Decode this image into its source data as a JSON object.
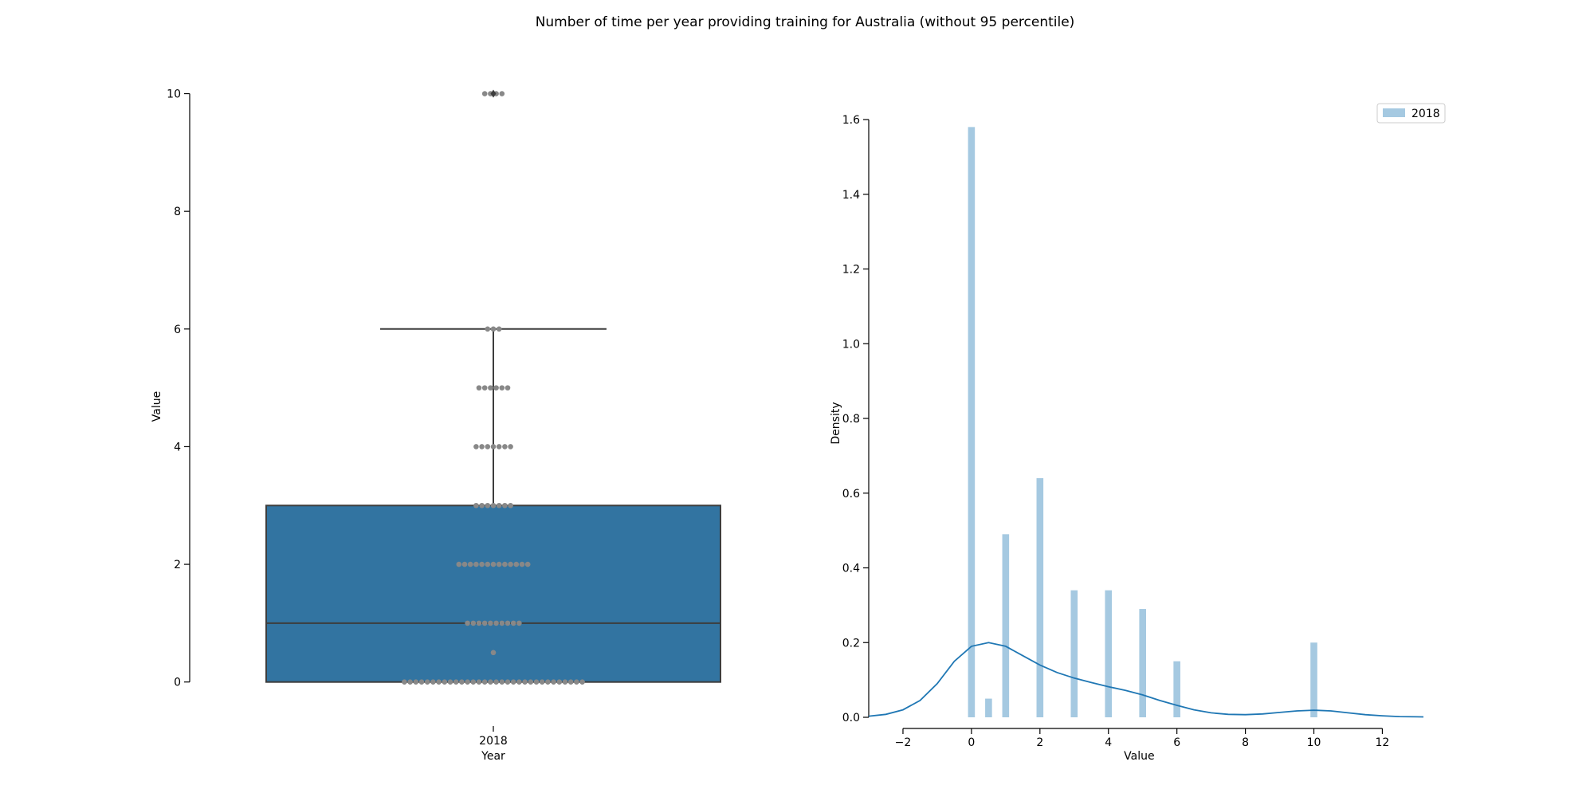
{
  "title": "Number of time per year providing training for Australia (without 95 percentile)",
  "colors": {
    "box_fill": "#3274a1",
    "box_edge": "#3d3d3d",
    "swarm": "#888888",
    "hist_bar": "#1f77b4",
    "kde": "#1f77b4"
  },
  "chart_data": [
    {
      "type": "box",
      "title": "",
      "xlabel": "Year",
      "ylabel": "Value",
      "categories": [
        "2018"
      ],
      "ylim": [
        -0.6,
        10.4
      ],
      "yticks": [
        0,
        2,
        4,
        6,
        8,
        10
      ],
      "box": {
        "category": "2018",
        "q1": 0,
        "median": 1,
        "q3": 3,
        "whisker_low": 0,
        "whisker_high": 6,
        "outliers": [
          10
        ]
      },
      "swarm_points": [
        {
          "value": 0,
          "count": 32
        },
        {
          "value": 0.5,
          "count": 1
        },
        {
          "value": 1,
          "count": 10
        },
        {
          "value": 2,
          "count": 13
        },
        {
          "value": 3,
          "count": 7
        },
        {
          "value": 4,
          "count": 7
        },
        {
          "value": 5,
          "count": 6
        },
        {
          "value": 6,
          "count": 3
        },
        {
          "value": 10,
          "count": 4
        }
      ]
    },
    {
      "type": "bar",
      "title": "",
      "xlabel": "Value",
      "ylabel": "Density",
      "xlim": [
        -3.0,
        13.2
      ],
      "ylim": [
        0,
        1.6
      ],
      "xticks": [
        -2,
        0,
        2,
        4,
        6,
        8,
        10,
        12
      ],
      "yticks": [
        0.0,
        0.2,
        0.4,
        0.6,
        0.8,
        1.0,
        1.2,
        1.4,
        1.6
      ],
      "legend": {
        "position": "top-right",
        "entries": [
          "2018"
        ]
      },
      "series": [
        {
          "name": "2018",
          "kind": "histogram",
          "bar_width": 0.2,
          "bars": [
            {
              "x": 0,
              "value": 1.58
            },
            {
              "x": 0.5,
              "value": 0.05
            },
            {
              "x": 1,
              "value": 0.49
            },
            {
              "x": 2,
              "value": 0.64
            },
            {
              "x": 3,
              "value": 0.34
            },
            {
              "x": 4,
              "value": 0.34
            },
            {
              "x": 5,
              "value": 0.29
            },
            {
              "x": 6,
              "value": 0.15
            },
            {
              "x": 10,
              "value": 0.2
            }
          ]
        },
        {
          "name": "2018",
          "kind": "kde",
          "x": [
            -3.0,
            -2.5,
            -2.0,
            -1.5,
            -1.0,
            -0.5,
            0.0,
            0.5,
            1.0,
            1.5,
            2.0,
            2.5,
            3.0,
            3.5,
            4.0,
            4.5,
            5.0,
            5.5,
            6.0,
            6.5,
            7.0,
            7.5,
            8.0,
            8.5,
            9.0,
            9.5,
            10.0,
            10.5,
            11.0,
            11.5,
            12.0,
            12.5,
            13.2
          ],
          "y": [
            0.003,
            0.008,
            0.02,
            0.045,
            0.09,
            0.15,
            0.19,
            0.2,
            0.19,
            0.165,
            0.14,
            0.12,
            0.105,
            0.093,
            0.082,
            0.072,
            0.06,
            0.045,
            0.032,
            0.02,
            0.012,
            0.008,
            0.007,
            0.009,
            0.013,
            0.017,
            0.019,
            0.017,
            0.012,
            0.007,
            0.004,
            0.002,
            0.001
          ]
        }
      ]
    }
  ]
}
